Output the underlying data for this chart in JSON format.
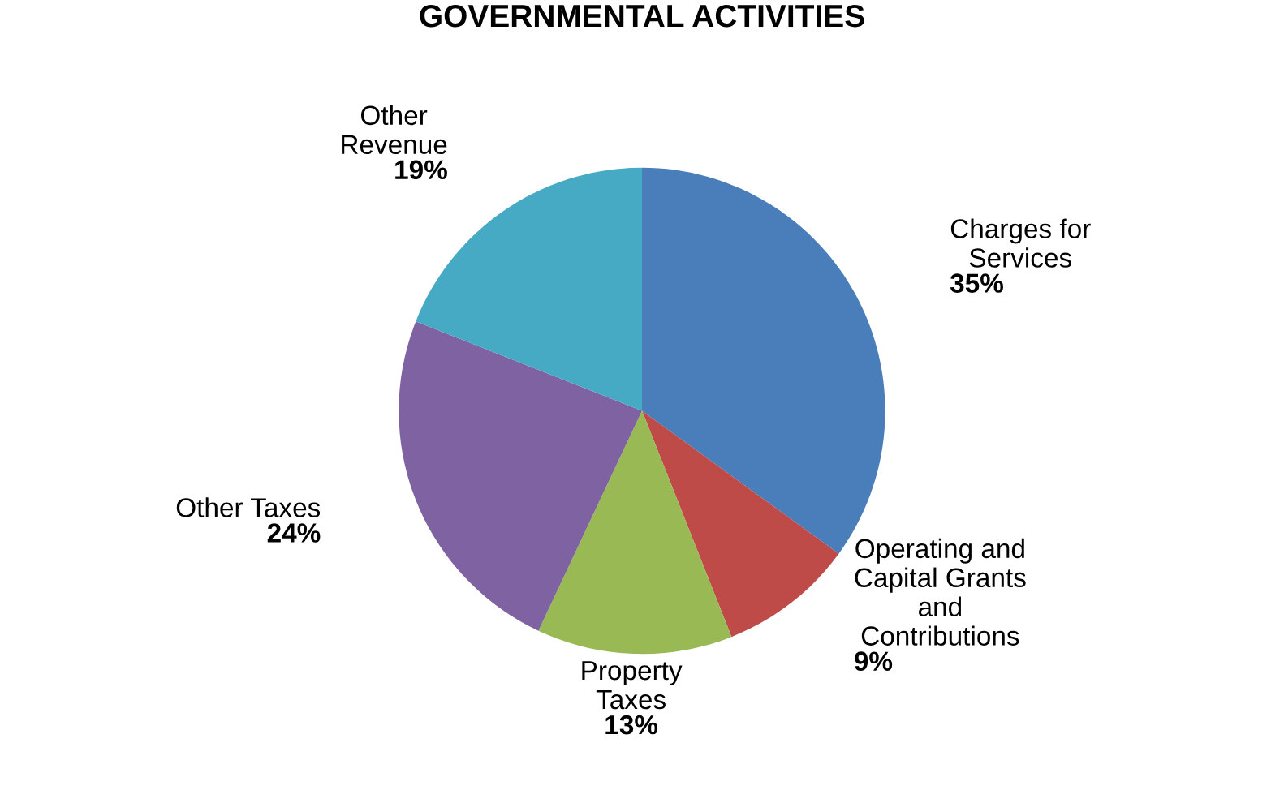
{
  "chart_data": {
    "type": "pie",
    "title": "GOVERNMENTAL ACTIVITIES",
    "categories": [
      "Charges for\nServices",
      "Operating and\nCapital Grants\nand\nContributions",
      "Property\nTaxes",
      "Other Taxes",
      "Other\nRevenue"
    ],
    "values": [
      35,
      9,
      13,
      24,
      19
    ],
    "colors": [
      "#4a7ebb",
      "#be4b48",
      "#98b954",
      "#7e62a1",
      "#46aac5"
    ],
    "value_labels": [
      "35%",
      "9%",
      "13%",
      "24%",
      "19%"
    ]
  }
}
